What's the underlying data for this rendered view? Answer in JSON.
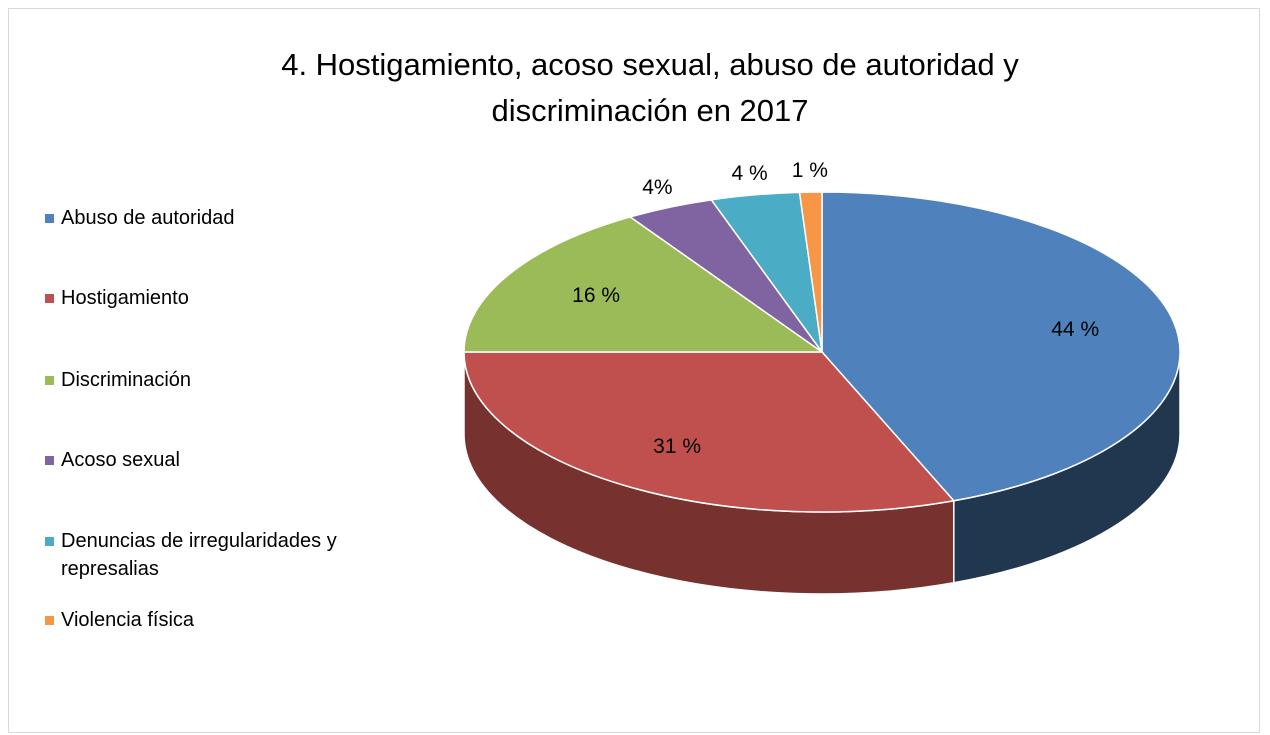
{
  "chart_data": {
    "type": "pie",
    "title": "4. Hostigamiento, acoso sexual, abuso de autoridad y discriminación en 2017",
    "categories": [
      "Abuso de autoridad",
      "Hostigamiento",
      "Discriminación",
      "Acoso sexual",
      "Denuncias de irregularidades y represalias",
      "Violencia física"
    ],
    "values": [
      44,
      31,
      16,
      4,
      4,
      1
    ],
    "value_labels": [
      "44 %",
      "31 %",
      "16 %",
      "4%",
      "4 %",
      "1 %"
    ],
    "colors": [
      "#4f81bd",
      "#c0504d",
      "#9bbb59",
      "#8064a2",
      "#4bacc6",
      "#f79646"
    ],
    "legend": "left"
  }
}
